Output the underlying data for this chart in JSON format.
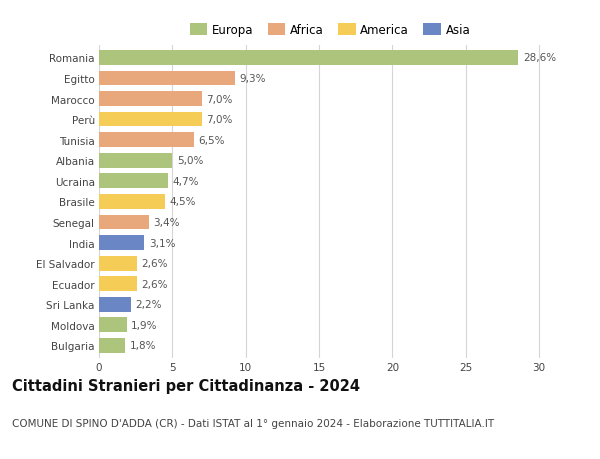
{
  "categories": [
    "Bulgaria",
    "Moldova",
    "Sri Lanka",
    "Ecuador",
    "El Salvador",
    "India",
    "Senegal",
    "Brasile",
    "Ucraina",
    "Albania",
    "Tunisia",
    "Perù",
    "Marocco",
    "Egitto",
    "Romania"
  ],
  "values": [
    1.8,
    1.9,
    2.2,
    2.6,
    2.6,
    3.1,
    3.4,
    4.5,
    4.7,
    5.0,
    6.5,
    7.0,
    7.0,
    9.3,
    28.6
  ],
  "labels": [
    "1,8%",
    "1,9%",
    "2,2%",
    "2,6%",
    "2,6%",
    "3,1%",
    "3,4%",
    "4,5%",
    "4,7%",
    "5,0%",
    "6,5%",
    "7,0%",
    "7,0%",
    "9,3%",
    "28,6%"
  ],
  "colors": [
    "#adc47d",
    "#adc47d",
    "#6b86c4",
    "#f5cc55",
    "#f5cc55",
    "#6b86c4",
    "#e8a87c",
    "#f5cc55",
    "#adc47d",
    "#adc47d",
    "#e8a87c",
    "#f5cc55",
    "#e8a87c",
    "#e8a87c",
    "#adc47d"
  ],
  "legend_labels": [
    "Europa",
    "Africa",
    "America",
    "Asia"
  ],
  "legend_colors": [
    "#adc47d",
    "#e8a87c",
    "#f5cc55",
    "#6b86c4"
  ],
  "title": "Cittadini Stranieri per Cittadinanza - 2024",
  "subtitle": "COMUNE DI SPINO D'ADDA (CR) - Dati ISTAT al 1° gennaio 2024 - Elaborazione TUTTITALIA.IT",
  "xlim": [
    0,
    31.5
  ],
  "xticks": [
    0,
    5,
    10,
    15,
    20,
    25,
    30
  ],
  "background_color": "#ffffff",
  "grid_color": "#d5d5d5",
  "bar_height": 0.72,
  "title_fontsize": 10.5,
  "subtitle_fontsize": 7.5,
  "label_fontsize": 7.5,
  "tick_fontsize": 7.5,
  "legend_fontsize": 8.5
}
